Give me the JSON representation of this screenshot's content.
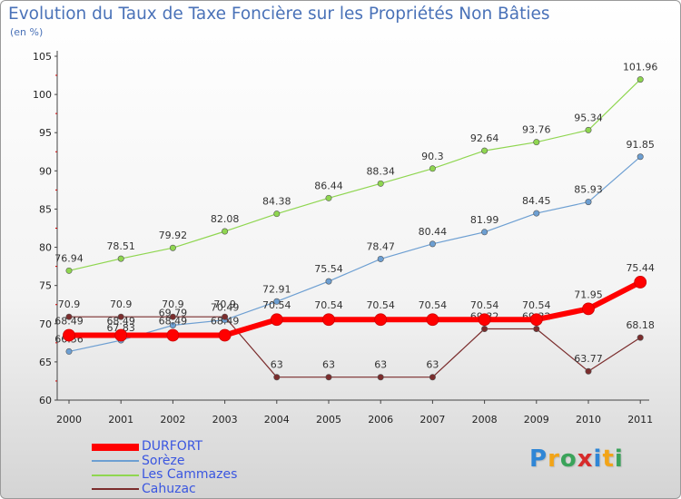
{
  "chart_data": {
    "type": "line",
    "title": "Evolution du Taux de Taxe Foncière sur les Propriétés Non Bâties",
    "ylabel": "(en %)",
    "xlabel": "",
    "categories": [
      "2000",
      "2001",
      "2002",
      "2003",
      "2004",
      "2005",
      "2006",
      "2007",
      "2008",
      "2009",
      "2010",
      "2011"
    ],
    "ylim": [
      60,
      105
    ],
    "yticks": [
      "60",
      "65",
      "70",
      "75",
      "80",
      "85",
      "90",
      "95",
      "100",
      "105"
    ],
    "series": [
      {
        "name": "Les Cammazes",
        "color": "#8fd650",
        "values": [
          76.94,
          78.51,
          79.92,
          82.08,
          84.38,
          86.44,
          88.34,
          90.3,
          92.64,
          93.76,
          95.34,
          101.96
        ],
        "labels": [
          "76.94",
          "78.51",
          "79.92",
          "82.08",
          "84.38",
          "86.44",
          "88.34",
          "90.3",
          "92.64",
          "93.76",
          "95.34",
          "101.96"
        ]
      },
      {
        "name": "Sorèze",
        "color": "#6d9fd2",
        "values": [
          66.36,
          67.83,
          69.79,
          70.49,
          72.91,
          75.54,
          78.47,
          80.44,
          81.99,
          84.45,
          85.93,
          91.85
        ],
        "labels": [
          "66.36",
          "67.83",
          "69.79",
          "70.49",
          "72.91",
          "75.54",
          "78.47",
          "80.44",
          "81.99",
          "84.45",
          "85.93",
          "91.85"
        ]
      },
      {
        "name": "Cahuzac",
        "color": "#7b2d2d",
        "values": [
          70.9,
          70.9,
          70.9,
          70.9,
          63,
          63,
          63,
          63,
          69.32,
          69.32,
          63.77,
          68.18
        ],
        "labels": [
          "70.9",
          "70.9",
          "70.9",
          "70.9",
          "63",
          "63",
          "63",
          "63",
          "69.32",
          "69.32",
          "63.77",
          "68.18"
        ]
      },
      {
        "name": "DURFORT",
        "color": "#ff0000",
        "values": [
          68.49,
          68.49,
          68.49,
          68.49,
          70.54,
          70.54,
          70.54,
          70.54,
          70.54,
          70.54,
          71.95,
          75.44
        ],
        "labels": [
          "68.49",
          "68.49",
          "68.49",
          "68.49",
          "70.54",
          "70.54",
          "70.54",
          "70.54",
          "70.54",
          "70.54",
          "71.95",
          "75.44"
        ]
      }
    ],
    "legend": [
      "DURFORT",
      "Sorèze",
      "Les Cammazes",
      "Cahuzac"
    ]
  },
  "logo": {
    "letters": [
      "P",
      "r",
      "o",
      "x",
      "i",
      "t",
      "i"
    ],
    "colors": [
      "#2f86d6",
      "#f2a418",
      "#3aa35a",
      "#d72b2b",
      "#2f86d6",
      "#f2a418",
      "#3aa35a"
    ]
  },
  "colors": {
    "title": "#4a72b8",
    "legend_text": "#3a56e0",
    "axis": "#444444"
  }
}
